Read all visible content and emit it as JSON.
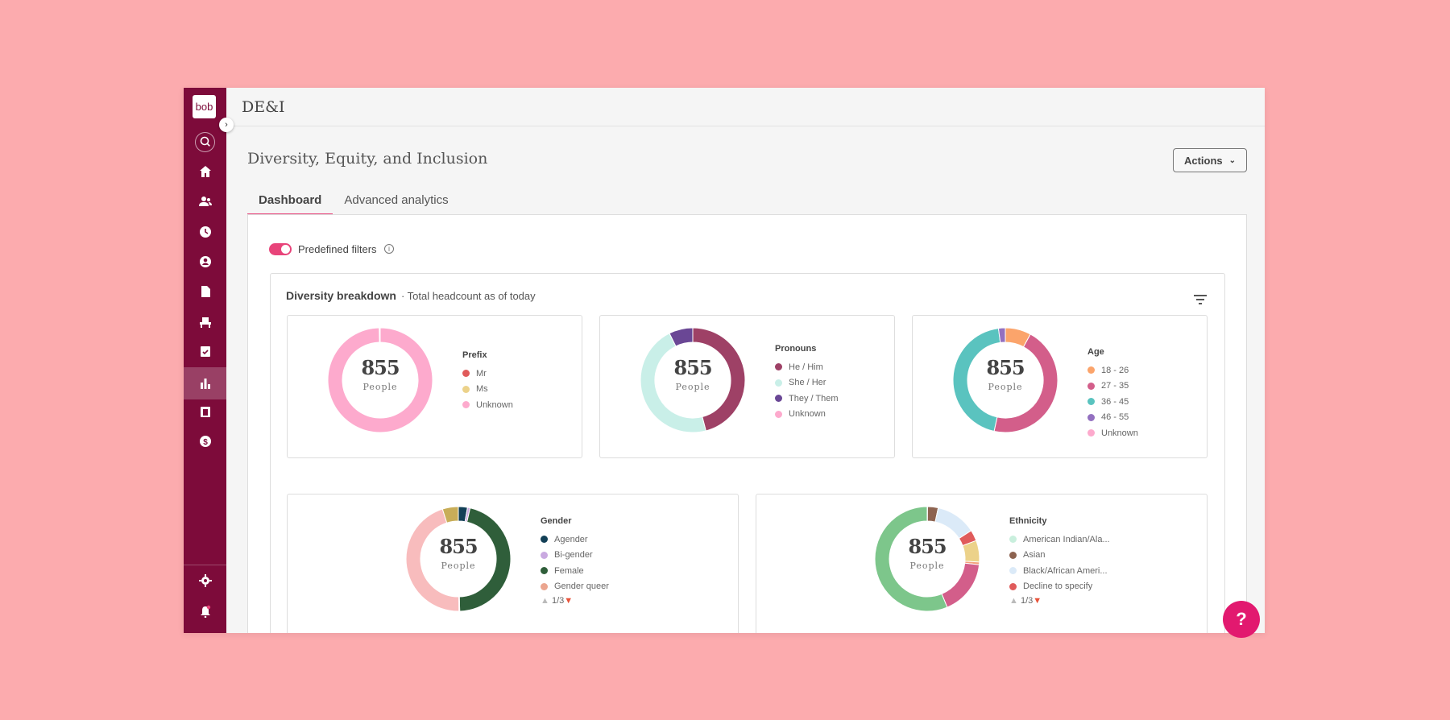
{
  "app": {
    "logo": "bob",
    "header_title": "DE&I"
  },
  "sidebar": {
    "items": [
      {
        "name": "search",
        "icon": "search-icon"
      },
      {
        "name": "home",
        "icon": "home-icon"
      },
      {
        "name": "people",
        "icon": "people-icon"
      },
      {
        "name": "time",
        "icon": "clock-icon"
      },
      {
        "name": "profile",
        "icon": "user-circle-icon"
      },
      {
        "name": "documents",
        "icon": "document-icon"
      },
      {
        "name": "onboarding",
        "icon": "chair-icon"
      },
      {
        "name": "tasks",
        "icon": "clipboard-check-icon"
      },
      {
        "name": "analytics",
        "icon": "bar-chart-icon",
        "active": true
      },
      {
        "name": "payroll",
        "icon": "calendar-dollar-icon"
      },
      {
        "name": "compensation",
        "icon": "dollar-icon"
      },
      {
        "name": "settings",
        "icon": "gear-icon"
      },
      {
        "name": "notifications",
        "icon": "bell-icon"
      }
    ]
  },
  "page": {
    "title": "Diversity, Equity, and Inclusion",
    "actions_label": "Actions",
    "tabs": [
      {
        "label": "Dashboard",
        "active": true
      },
      {
        "label": "Advanced analytics"
      }
    ],
    "toggle_label": "Predefined filters",
    "toggle_on": true,
    "section_title": "Diversity breakdown",
    "section_subtitle": "· Total headcount as of today"
  },
  "accent": "#e8447a",
  "chart_data": [
    {
      "type": "pie",
      "donut": true,
      "title": "Prefix",
      "total": "855",
      "total_label": "People",
      "categories": [
        "Mr",
        "Ms",
        "Unknown"
      ],
      "colors": [
        "#e05b5b",
        "#ecd28a",
        "#fdaacd"
      ],
      "values": [
        0,
        0,
        855
      ]
    },
    {
      "type": "pie",
      "donut": true,
      "title": "Pronouns",
      "total": "855",
      "total_label": "People",
      "categories": [
        "He / Him",
        "She / Her",
        "They / Them",
        "Unknown"
      ],
      "colors": [
        "#9e4166",
        "#c9efe8",
        "#6a4795",
        "#fdaacd"
      ],
      "values": [
        393,
        399,
        63,
        0
      ]
    },
    {
      "type": "pie",
      "donut": true,
      "title": "Age",
      "total": "855",
      "total_label": "People",
      "categories": [
        "18 - 26",
        "27 - 35",
        "36 - 45",
        "46 - 55",
        "Unknown"
      ],
      "colors": [
        "#fba46b",
        "#d35e8a",
        "#5ac3bf",
        "#9370c0",
        "#fdaacd"
      ],
      "values": [
        68,
        389,
        380,
        18,
        0
      ]
    },
    {
      "type": "pie",
      "donut": true,
      "title": "Gender",
      "total": "855",
      "total_label": "People",
      "legend_page": "1/3",
      "categories": [
        "Agender",
        "Bi-gender",
        "Female",
        "Gender queer"
      ],
      "colors": [
        "#123f56",
        "#c9a9e0",
        "#2f5e3a",
        "#eba58f"
      ],
      "values": [
        24,
        7,
        393,
        2
      ],
      "unlabeled_segments": {
        "colors": [
          "#f8bcbd",
          "#c8ad58"
        ],
        "values": [
          387,
          42
        ]
      }
    },
    {
      "type": "pie",
      "donut": true,
      "title": "Ethnicity",
      "total": "855",
      "total_label": "People",
      "legend_page": "1/3",
      "categories": [
        "American Indian/Ala...",
        "Asian",
        "Black/African Ameri...",
        "Decline to specify"
      ],
      "colors": [
        "#c9efdd",
        "#8d6350",
        "#dbeaf8",
        "#e05b5b"
      ],
      "values": [
        1,
        28,
        107,
        29
      ],
      "unlabeled_segments": {
        "colors": [
          "#ecd28a",
          "#f4a07c",
          "#d35e8a",
          "#7dc68b"
        ],
        "values": [
          57,
          7,
          145,
          481
        ]
      }
    }
  ],
  "help_label": "?"
}
